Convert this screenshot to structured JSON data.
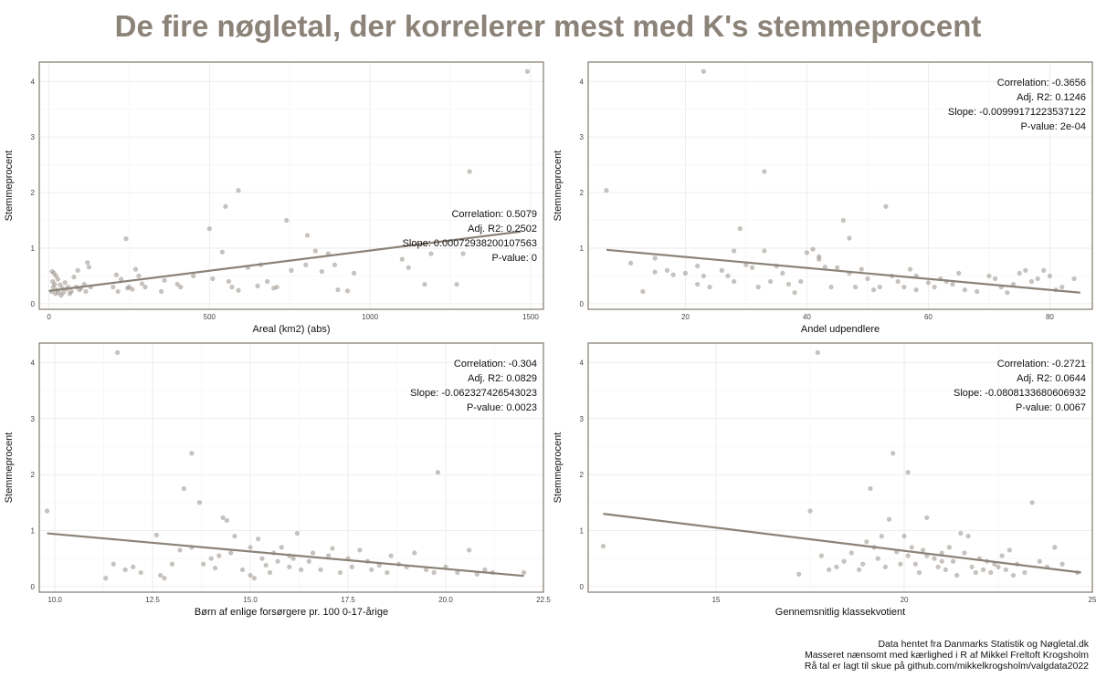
{
  "title": "De fire nøgletal, der korrelerer mest med K's stemmeprocent",
  "caption": [
    "Data hentet fra Danmarks Statistik og Nøgletal.dk",
    "Masseret nænsomt med kærlighed i R af Mikkel Freltoft Krogsholm",
    "Rå tal er lagt til skue på github.com/mikkelkrogsholm/valgdata2022"
  ],
  "colors": {
    "title": "#8b8278",
    "line": "#8b8278",
    "point": "#9a928a",
    "frame": "#8b8278",
    "grid": "#ebebeb"
  },
  "chart_data": [
    {
      "type": "scatter",
      "xlabel": "Areal (km2) (abs)",
      "ylabel": "Stemmeprocent",
      "xlim": [
        -30,
        1540
      ],
      "ylim": [
        -0.1,
        4.35
      ],
      "xticks": [
        0,
        500,
        1000,
        1500
      ],
      "xtick_labels": [
        "0",
        "500",
        "1000",
        "1500"
      ],
      "yticks": [
        0,
        1,
        2,
        3,
        4
      ],
      "stats": [
        "Correlation: 0.5079",
        "Adj. R2: 0.2502",
        "Slope: 0.00072938200107563",
        "P-value: 0"
      ],
      "stats_position": "bottom-right",
      "regression": {
        "x": [
          0,
          1470
        ],
        "y": [
          0.23,
          1.3
        ]
      },
      "points": [
        [
          8,
          0.22
        ],
        [
          10,
          0.58
        ],
        [
          12,
          0.4
        ],
        [
          14,
          0.3
        ],
        [
          16,
          0.55
        ],
        [
          18,
          0.35
        ],
        [
          20,
          0.18
        ],
        [
          22,
          0.5
        ],
        [
          25,
          0.25
        ],
        [
          28,
          0.44
        ],
        [
          30,
          0.2
        ],
        [
          35,
          0.34
        ],
        [
          38,
          0.15
        ],
        [
          42,
          0.28
        ],
        [
          45,
          0.2
        ],
        [
          50,
          0.38
        ],
        [
          55,
          0.26
        ],
        [
          60,
          0.3
        ],
        [
          65,
          0.18
        ],
        [
          70,
          0.22
        ],
        [
          78,
          0.48
        ],
        [
          85,
          0.3
        ],
        [
          90,
          0.6
        ],
        [
          95,
          0.25
        ],
        [
          100,
          0.28
        ],
        [
          110,
          0.35
        ],
        [
          115,
          0.22
        ],
        [
          120,
          0.74
        ],
        [
          125,
          0.66
        ],
        [
          130,
          0.3
        ],
        [
          200,
          0.3
        ],
        [
          210,
          0.52
        ],
        [
          215,
          0.22
        ],
        [
          225,
          0.44
        ],
        [
          240,
          1.17
        ],
        [
          245,
          0.28
        ],
        [
          250,
          0.3
        ],
        [
          260,
          0.26
        ],
        [
          270,
          0.62
        ],
        [
          280,
          0.5
        ],
        [
          290,
          0.36
        ],
        [
          300,
          0.3
        ],
        [
          350,
          0.22
        ],
        [
          360,
          0.42
        ],
        [
          400,
          0.35
        ],
        [
          410,
          0.3
        ],
        [
          450,
          0.5
        ],
        [
          500,
          1.35
        ],
        [
          510,
          0.45
        ],
        [
          540,
          0.93
        ],
        [
          550,
          1.75
        ],
        [
          560,
          0.4
        ],
        [
          570,
          0.3
        ],
        [
          590,
          0.24
        ],
        [
          590,
          2.04
        ],
        [
          620,
          0.65
        ],
        [
          650,
          0.32
        ],
        [
          660,
          0.7
        ],
        [
          680,
          0.4
        ],
        [
          700,
          0.28
        ],
        [
          710,
          0.3
        ],
        [
          740,
          1.5
        ],
        [
          755,
          0.6
        ],
        [
          800,
          0.7
        ],
        [
          805,
          1.23
        ],
        [
          830,
          0.95
        ],
        [
          850,
          0.58
        ],
        [
          870,
          0.9
        ],
        [
          890,
          0.7
        ],
        [
          900,
          0.25
        ],
        [
          930,
          0.23
        ],
        [
          950,
          0.55
        ],
        [
          1100,
          0.8
        ],
        [
          1120,
          0.65
        ],
        [
          1170,
          0.35
        ],
        [
          1190,
          0.9
        ],
        [
          1270,
          0.35
        ],
        [
          1290,
          0.9
        ],
        [
          1310,
          2.38
        ],
        [
          1490,
          4.18
        ]
      ]
    },
    {
      "type": "scatter",
      "xlabel": "Andel udpendlere",
      "ylabel": "Stemmeprocent",
      "xlim": [
        4,
        87
      ],
      "ylim": [
        -0.1,
        4.35
      ],
      "xticks": [
        20,
        40,
        60,
        80
      ],
      "xtick_labels": [
        "20",
        "40",
        "60",
        "80"
      ],
      "yticks": [
        0,
        1,
        2,
        3,
        4
      ],
      "stats": [
        "Correlation: -0.3656",
        "Adj. R2: 0.1246",
        "Slope: -0.00999171223537122",
        "P-value: 2e-04"
      ],
      "stats_position": "top-right",
      "regression": {
        "x": [
          7,
          85
        ],
        "y": [
          0.97,
          0.2
        ]
      },
      "points": [
        [
          7,
          2.04
        ],
        [
          11,
          0.73
        ],
        [
          13,
          0.22
        ],
        [
          15,
          0.57
        ],
        [
          15,
          0.82
        ],
        [
          17,
          0.6
        ],
        [
          18,
          0.52
        ],
        [
          20,
          0.55
        ],
        [
          22,
          0.35
        ],
        [
          22,
          0.68
        ],
        [
          23,
          0.5
        ],
        [
          23,
          4.18
        ],
        [
          24,
          0.3
        ],
        [
          26,
          0.6
        ],
        [
          27,
          0.5
        ],
        [
          28,
          0.4
        ],
        [
          28,
          0.95
        ],
        [
          29,
          1.35
        ],
        [
          30,
          0.7
        ],
        [
          31,
          0.65
        ],
        [
          32,
          0.3
        ],
        [
          33,
          2.38
        ],
        [
          33,
          0.95
        ],
        [
          34,
          0.4
        ],
        [
          35,
          0.68
        ],
        [
          36,
          0.55
        ],
        [
          37,
          0.35
        ],
        [
          38,
          0.2
        ],
        [
          39,
          0.4
        ],
        [
          40,
          0.92
        ],
        [
          41,
          0.98
        ],
        [
          42,
          0.8
        ],
        [
          42,
          0.85
        ],
        [
          43,
          0.66
        ],
        [
          44,
          0.3
        ],
        [
          45,
          0.65
        ],
        [
          46,
          1.5
        ],
        [
          47,
          0.55
        ],
        [
          47,
          1.18
        ],
        [
          48,
          0.3
        ],
        [
          49,
          0.62
        ],
        [
          50,
          0.45
        ],
        [
          51,
          0.25
        ],
        [
          52,
          0.3
        ],
        [
          53,
          1.75
        ],
        [
          54,
          0.5
        ],
        [
          55,
          0.4
        ],
        [
          56,
          0.3
        ],
        [
          57,
          0.62
        ],
        [
          58,
          0.5
        ],
        [
          58,
          0.25
        ],
        [
          60,
          0.38
        ],
        [
          61,
          0.3
        ],
        [
          62,
          0.45
        ],
        [
          63,
          0.4
        ],
        [
          64,
          0.35
        ],
        [
          65,
          0.55
        ],
        [
          66,
          0.25
        ],
        [
          68,
          0.22
        ],
        [
          70,
          0.5
        ],
        [
          71,
          0.45
        ],
        [
          72,
          0.3
        ],
        [
          73,
          0.2
        ],
        [
          74,
          0.35
        ],
        [
          75,
          0.55
        ],
        [
          76,
          0.6
        ],
        [
          77,
          0.4
        ],
        [
          78,
          0.45
        ],
        [
          79,
          0.6
        ],
        [
          80,
          0.5
        ],
        [
          81,
          0.25
        ],
        [
          82,
          0.3
        ],
        [
          84,
          0.45
        ]
      ]
    },
    {
      "type": "scatter",
      "xlabel": "Børn af enlige forsørgere pr. 100 0-17-årige",
      "ylabel": "Stemmeprocent",
      "xlim": [
        9.6,
        22.5
      ],
      "ylim": [
        -0.1,
        4.35
      ],
      "xticks": [
        10,
        12.5,
        15,
        17.5,
        20,
        22.5
      ],
      "xtick_labels": [
        "10.0",
        "12.5",
        "15.0",
        "17.5",
        "20.0",
        "22.5"
      ],
      "yticks": [
        0,
        1,
        2,
        3,
        4
      ],
      "stats": [
        "Correlation: -0.304",
        "Adj. R2: 0.0829",
        "Slope: -0.062327426543023",
        "P-value: 0.0023"
      ],
      "stats_position": "top-right",
      "regression": {
        "x": [
          9.8,
          22
        ],
        "y": [
          0.95,
          0.19
        ]
      },
      "points": [
        [
          9.8,
          1.35
        ],
        [
          11.3,
          0.15
        ],
        [
          11.5,
          0.4
        ],
        [
          11.6,
          4.18
        ],
        [
          11.8,
          0.3
        ],
        [
          12,
          0.35
        ],
        [
          12.2,
          0.25
        ],
        [
          12.6,
          0.92
        ],
        [
          12.7,
          0.2
        ],
        [
          12.8,
          0.15
        ],
        [
          13,
          0.4
        ],
        [
          13.2,
          0.65
        ],
        [
          13.3,
          1.75
        ],
        [
          13.5,
          0.7
        ],
        [
          13.5,
          2.38
        ],
        [
          13.7,
          1.5
        ],
        [
          13.8,
          0.4
        ],
        [
          14,
          0.5
        ],
        [
          14.1,
          0.33
        ],
        [
          14.2,
          0.55
        ],
        [
          14.3,
          1.23
        ],
        [
          14.4,
          1.18
        ],
        [
          14.5,
          0.6
        ],
        [
          14.6,
          0.9
        ],
        [
          14.8,
          0.3
        ],
        [
          15,
          0.7
        ],
        [
          15,
          0.2
        ],
        [
          15.1,
          0.15
        ],
        [
          15.2,
          0.85
        ],
        [
          15.3,
          0.5
        ],
        [
          15.4,
          0.38
        ],
        [
          15.5,
          0.25
        ],
        [
          15.6,
          0.6
        ],
        [
          15.7,
          0.45
        ],
        [
          15.8,
          0.7
        ],
        [
          16,
          0.35
        ],
        [
          16,
          0.55
        ],
        [
          16.1,
          0.5
        ],
        [
          16.2,
          0.95
        ],
        [
          16.3,
          0.3
        ],
        [
          16.5,
          0.45
        ],
        [
          16.6,
          0.6
        ],
        [
          16.8,
          0.3
        ],
        [
          17,
          0.55
        ],
        [
          17.1,
          0.68
        ],
        [
          17.3,
          0.25
        ],
        [
          17.5,
          0.5
        ],
        [
          17.6,
          0.35
        ],
        [
          17.8,
          0.65
        ],
        [
          18,
          0.45
        ],
        [
          18.1,
          0.3
        ],
        [
          18.3,
          0.38
        ],
        [
          18.5,
          0.25
        ],
        [
          18.6,
          0.55
        ],
        [
          18.8,
          0.4
        ],
        [
          19,
          0.35
        ],
        [
          19.2,
          0.6
        ],
        [
          19.5,
          0.3
        ],
        [
          19.7,
          0.25
        ],
        [
          19.8,
          2.04
        ],
        [
          20,
          0.35
        ],
        [
          20.3,
          0.25
        ],
        [
          20.6,
          0.65
        ],
        [
          20.8,
          0.22
        ],
        [
          21,
          0.3
        ],
        [
          21.2,
          0.25
        ],
        [
          22,
          0.25
        ]
      ]
    },
    {
      "type": "scatter",
      "xlabel": "Gennemsnitlig klassekvotient",
      "ylabel": "Stemmeprocent",
      "xlim": [
        11.6,
        25
      ],
      "ylim": [
        -0.1,
        4.35
      ],
      "xticks": [
        15,
        20,
        25
      ],
      "xtick_labels": [
        "15",
        "20",
        "25"
      ],
      "yticks": [
        0,
        1,
        2,
        3,
        4
      ],
      "stats": [
        "Correlation: -0.2721",
        "Adj. R2: 0.0644",
        "Slope: -0.0808133680606932",
        "P-value: 0.0067"
      ],
      "stats_position": "top-right",
      "regression": {
        "x": [
          12,
          24.7
        ],
        "y": [
          1.3,
          0.25
        ]
      },
      "points": [
        [
          12,
          0.72
        ],
        [
          17.2,
          0.22
        ],
        [
          17.5,
          1.35
        ],
        [
          17.7,
          4.18
        ],
        [
          17.8,
          0.55
        ],
        [
          18,
          0.3
        ],
        [
          18.2,
          0.35
        ],
        [
          18.4,
          0.45
        ],
        [
          18.6,
          0.6
        ],
        [
          18.8,
          0.3
        ],
        [
          18.9,
          0.4
        ],
        [
          19,
          0.8
        ],
        [
          19.1,
          1.75
        ],
        [
          19.2,
          0.7
        ],
        [
          19.3,
          0.5
        ],
        [
          19.4,
          0.9
        ],
        [
          19.5,
          0.35
        ],
        [
          19.6,
          1.2
        ],
        [
          19.7,
          2.38
        ],
        [
          19.8,
          0.62
        ],
        [
          19.9,
          0.4
        ],
        [
          20,
          0.9
        ],
        [
          20.1,
          0.55
        ],
        [
          20.1,
          2.04
        ],
        [
          20.2,
          0.7
        ],
        [
          20.3,
          0.4
        ],
        [
          20.4,
          0.25
        ],
        [
          20.5,
          0.65
        ],
        [
          20.6,
          0.55
        ],
        [
          20.6,
          1.23
        ],
        [
          20.8,
          0.5
        ],
        [
          20.9,
          0.35
        ],
        [
          21,
          0.45
        ],
        [
          21,
          0.6
        ],
        [
          21.1,
          0.3
        ],
        [
          21.2,
          0.7
        ],
        [
          21.3,
          0.45
        ],
        [
          21.4,
          0.2
        ],
        [
          21.5,
          0.95
        ],
        [
          21.6,
          0.6
        ],
        [
          21.7,
          0.9
        ],
        [
          21.8,
          0.35
        ],
        [
          21.9,
          0.25
        ],
        [
          22,
          0.5
        ],
        [
          22.1,
          0.3
        ],
        [
          22.2,
          0.45
        ],
        [
          22.3,
          0.25
        ],
        [
          22.4,
          0.4
        ],
        [
          22.5,
          0.35
        ],
        [
          22.6,
          0.55
        ],
        [
          22.7,
          0.3
        ],
        [
          22.8,
          0.65
        ],
        [
          22.9,
          0.2
        ],
        [
          23,
          0.4
        ],
        [
          23.2,
          0.25
        ],
        [
          23.4,
          1.5
        ],
        [
          23.6,
          0.45
        ],
        [
          23.8,
          0.35
        ],
        [
          24,
          0.7
        ],
        [
          24.2,
          0.4
        ],
        [
          24.6,
          0.25
        ]
      ]
    }
  ]
}
